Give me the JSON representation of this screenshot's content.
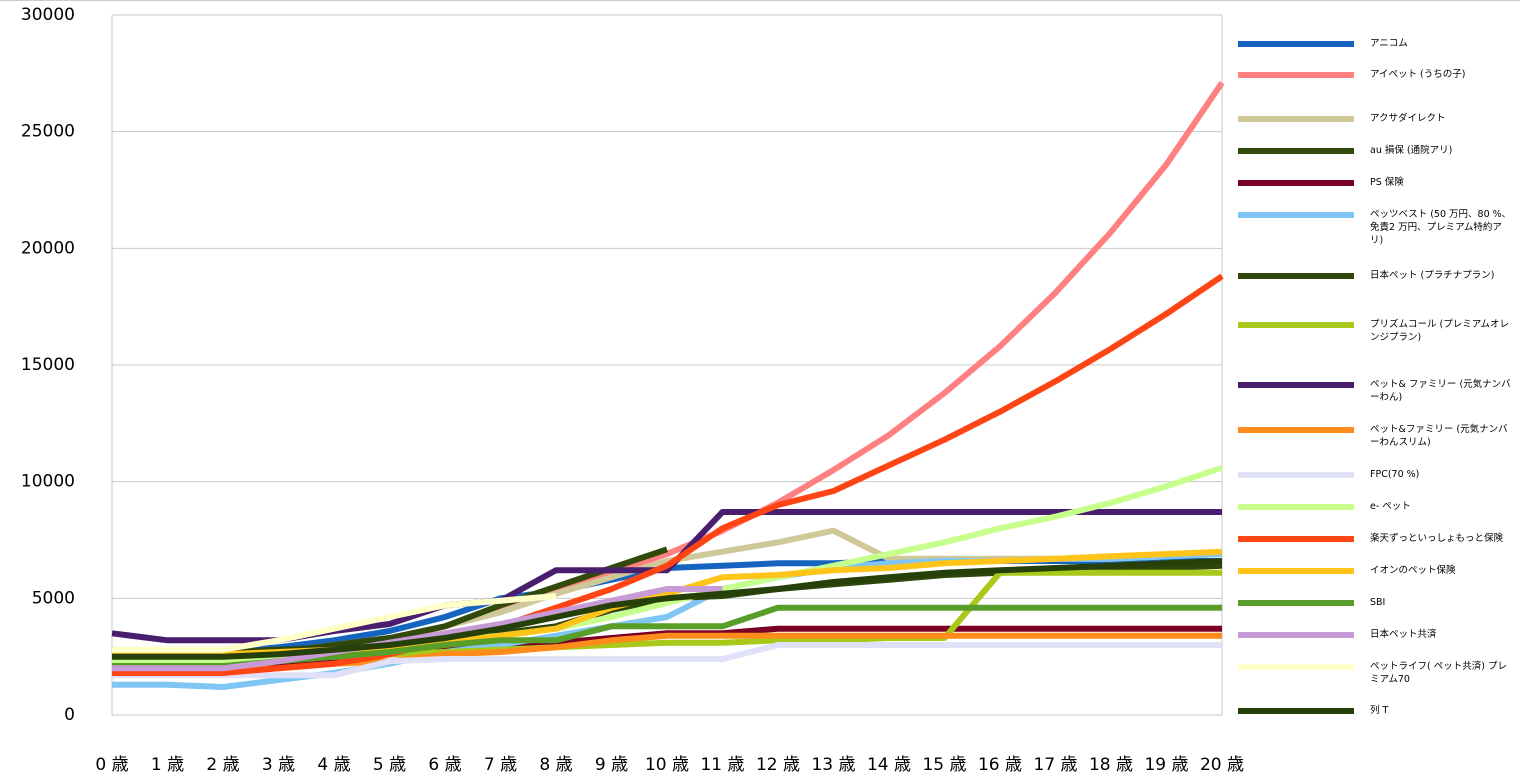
{
  "chart_data": {
    "type": "line",
    "categories": [
      "0 歳",
      "1 歳",
      "2 歳",
      "3 歳",
      "4 歳",
      "5 歳",
      "6 歳",
      "7 歳",
      "8 歳",
      "9 歳",
      "10 歳",
      "11 歳",
      "12 歳",
      "13 歳",
      "14 歳",
      "15 歳",
      "16 歳",
      "17 歳",
      "18 歳",
      "19 歳",
      "20 歳"
    ],
    "ylim": [
      0,
      30000
    ],
    "yticks": [
      0,
      5000,
      10000,
      15000,
      20000,
      25000,
      30000
    ],
    "grid": true,
    "legend": "right",
    "series": [
      {
        "name": "アニコム",
        "color": "#1565c0",
        "values": [
          2700,
          2700,
          2700,
          2900,
          3200,
          3600,
          4200,
          5000,
          5300,
          5800,
          6300,
          6400,
          6500,
          6500,
          6600,
          6600,
          6600,
          6600,
          6600,
          6600,
          6600
        ]
      },
      {
        "name": "アイペット (うちの子)",
        "color": "#ff8080",
        "values": [
          2200,
          2200,
          2200,
          2500,
          2900,
          3200,
          3800,
          4500,
          5300,
          6100,
          6900,
          7900,
          9100,
          10500,
          12000,
          13800,
          15800,
          18100,
          20700,
          23600,
          27100
        ]
      },
      {
        "name": "アクサダイレクト",
        "color": "#cfc99a",
        "values": [
          2500,
          2500,
          2500,
          2700,
          3000,
          3300,
          3800,
          4400,
          5200,
          5900,
          6600,
          7000,
          7400,
          7900,
          6700,
          6700,
          6700,
          6700,
          6700,
          6800,
          6900
        ]
      },
      {
        "name": "au 損保 (通院アリ)",
        "color": "#314a0c",
        "values": [
          2500,
          2500,
          2500,
          2700,
          3000,
          3300,
          3800,
          4700,
          5500,
          6300,
          7100,
          null,
          null,
          null,
          null,
          null,
          null,
          null,
          null,
          null,
          null
        ]
      },
      {
        "name": "PS 保険",
        "color": "#7b0026",
        "values": [
          2100,
          2100,
          2100,
          2200,
          2400,
          2600,
          2800,
          3000,
          3100,
          3300,
          3500,
          3500,
          3700,
          3700,
          3700,
          3700,
          3700,
          3700,
          3700,
          3700,
          3700
        ]
      },
      {
        "name": "ペッツベスト (50 万円、80 %、免責2 万円、プレミアム特約アリ)",
        "color": "#7fc6f5",
        "values": [
          1300,
          1300,
          1200,
          1500,
          1800,
          2200,
          2700,
          3000,
          3400,
          3800,
          4200,
          5400,
          5900,
          6300,
          6500,
          6600,
          6600,
          6700,
          6700,
          6800,
          6900
        ]
      },
      {
        "name": "日本ペット (プラチナプラン)",
        "color": "#2d460a",
        "values": [
          2800,
          2700,
          2700,
          2800,
          2900,
          3000,
          3200,
          3500,
          3800,
          4500,
          5000,
          5100,
          5400,
          5600,
          5800,
          6000,
          6100,
          6200,
          6200,
          6300,
          6400
        ]
      },
      {
        "name": "プリズムコール (プレミアムオレンジプラン)",
        "color": "#a8c81a",
        "values": [
          2400,
          2300,
          2300,
          2400,
          2500,
          2600,
          2700,
          2800,
          2900,
          3000,
          3100,
          3100,
          3200,
          3200,
          3300,
          3300,
          6100,
          6100,
          6100,
          6100,
          6100
        ]
      },
      {
        "name": "ペット& ファミリー (元気ナンバーわん)",
        "color": "#4a1e6e",
        "values": [
          3500,
          3200,
          3200,
          3200,
          3600,
          3900,
          4700,
          4900,
          6200,
          6200,
          6200,
          8700,
          8700,
          8700,
          8700,
          8700,
          8700,
          8700,
          8700,
          8700,
          8700
        ]
      },
      {
        "name": "ペット&ファミリー (元気ナンバーわんスリム)",
        "color": "#ff8c1a",
        "values": [
          1900,
          1900,
          1900,
          2000,
          2200,
          2300,
          2600,
          2700,
          2900,
          3200,
          3400,
          3400,
          3400,
          3400,
          3400,
          3400,
          3400,
          3400,
          3400,
          3400,
          3400
        ]
      },
      {
        "name": "FPC(70 %)",
        "color": "#e0e0f8",
        "values": [
          1700,
          1700,
          1700,
          1700,
          1700,
          2300,
          2400,
          2400,
          2400,
          2400,
          2400,
          2400,
          3000,
          3000,
          3000,
          3000,
          3000,
          3000,
          3000,
          3000,
          3000
        ]
      },
      {
        "name": "e- ペット",
        "color": "#c6ff8c",
        "values": [
          2300,
          2300,
          2300,
          2500,
          2700,
          2900,
          3200,
          3400,
          3700,
          4200,
          4800,
          5400,
          5900,
          6400,
          6900,
          7400,
          8000,
          8500,
          9100,
          9800,
          10600
        ]
      },
      {
        "name": "楽天ずっといっしょもっと保険",
        "color": "#ff4513",
        "values": [
          1800,
          1800,
          1800,
          2000,
          2200,
          2600,
          3200,
          3800,
          4600,
          5400,
          6400,
          8000,
          9000,
          9600,
          10700,
          11800,
          13000,
          14300,
          15700,
          17200,
          18800
        ]
      },
      {
        "name": "イオンのペット保険",
        "color": "#ffc41a",
        "values": [
          2600,
          2600,
          2600,
          2700,
          2800,
          2900,
          3100,
          3400,
          3700,
          4600,
          5200,
          5900,
          6000,
          6200,
          6300,
          6500,
          6600,
          6700,
          6800,
          6900,
          7000
        ]
      },
      {
        "name": "SBI",
        "color": "#5a9e2a",
        "values": [
          2100,
          2100,
          2100,
          2300,
          2500,
          2700,
          3000,
          3200,
          3200,
          3800,
          3800,
          3800,
          4600,
          4600,
          4600,
          4600,
          4600,
          4600,
          4600,
          4600,
          4600
        ]
      },
      {
        "name": "日本ペット共済",
        "color": "#c89ad6",
        "values": [
          2000,
          2000,
          2000,
          2300,
          2700,
          3100,
          3500,
          3900,
          4400,
          4900,
          5400,
          5400,
          null,
          null,
          null,
          null,
          null,
          null,
          null,
          null,
          null
        ]
      },
      {
        "name": "ペットライフ( ペット共済) プレミアム70",
        "color": "#ffffc8",
        "values": [
          2800,
          2800,
          2800,
          3200,
          3700,
          4200,
          4700,
          4900,
          5100,
          null,
          null,
          null,
          null,
          null,
          null,
          null,
          null,
          null,
          null,
          null,
          null
        ]
      },
      {
        "name": "列 T",
        "color": "#26400a",
        "values": [
          2500,
          2500,
          2500,
          2600,
          2800,
          3000,
          3300,
          3700,
          4200,
          4700,
          5000,
          5200,
          5400,
          5700,
          5900,
          6100,
          6200,
          6300,
          6400,
          6500,
          6600
        ]
      }
    ]
  }
}
